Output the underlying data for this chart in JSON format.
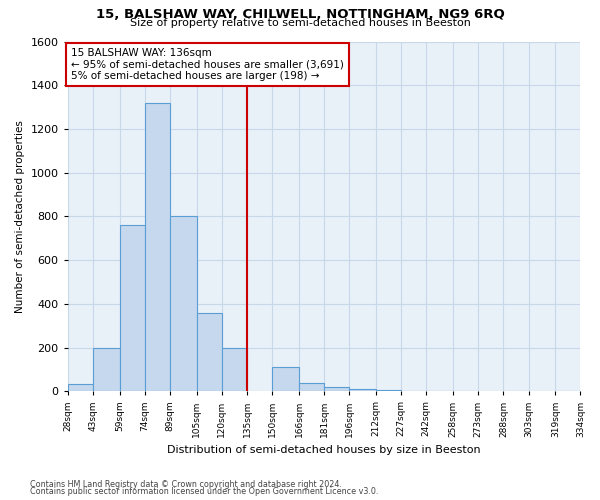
{
  "title1": "15, BALSHAW WAY, CHILWELL, NOTTINGHAM, NG9 6RQ",
  "title2": "Size of property relative to semi-detached houses in Beeston",
  "xlabel": "Distribution of semi-detached houses by size in Beeston",
  "ylabel": "Number of semi-detached properties",
  "footnote1": "Contains HM Land Registry data © Crown copyright and database right 2024.",
  "footnote2": "Contains public sector information licensed under the Open Government Licence v3.0.",
  "annotation_line1": "15 BALSHAW WAY: 136sqm",
  "annotation_line2": "← 95% of semi-detached houses are smaller (3,691)",
  "annotation_line3": "5% of semi-detached houses are larger (198) →",
  "bar_left_edges": [
    28,
    43,
    59,
    74,
    89,
    105,
    120,
    135,
    150,
    166,
    181,
    196,
    212,
    227,
    242,
    258,
    273,
    288,
    303,
    319
  ],
  "bar_widths": [
    15,
    16,
    15,
    15,
    16,
    15,
    15,
    15,
    16,
    15,
    15,
    16,
    15,
    15,
    16,
    15,
    15,
    15,
    16,
    15
  ],
  "counts": [
    35,
    200,
    760,
    1320,
    800,
    360,
    200,
    0,
    110,
    40,
    20,
    10,
    5,
    3,
    2,
    1,
    0,
    1,
    0,
    1
  ],
  "bar_color": "#c5d8ee",
  "bar_edge_color": "#5a9fd4",
  "vline_color": "#cc0000",
  "vline_x": 135,
  "box_edge_color": "#cc0000",
  "ylim": [
    0,
    1600
  ],
  "xlim": [
    28,
    334
  ],
  "yticks": [
    0,
    200,
    400,
    600,
    800,
    1000,
    1200,
    1400,
    1600
  ],
  "xtick_labels": [
    "28sqm",
    "43sqm",
    "59sqm",
    "74sqm",
    "89sqm",
    "105sqm",
    "120sqm",
    "135sqm",
    "150sqm",
    "166sqm",
    "181sqm",
    "196sqm",
    "212sqm",
    "227sqm",
    "242sqm",
    "258sqm",
    "273sqm",
    "288sqm",
    "303sqm",
    "319sqm",
    "334sqm"
  ],
  "xtick_positions": [
    28,
    43,
    59,
    74,
    89,
    105,
    120,
    135,
    150,
    166,
    181,
    196,
    212,
    227,
    242,
    258,
    273,
    288,
    303,
    319,
    334
  ],
  "grid_color": "#c8d8e8",
  "background_color": "#ffffff",
  "plot_bg_color": "#e8f0f8"
}
